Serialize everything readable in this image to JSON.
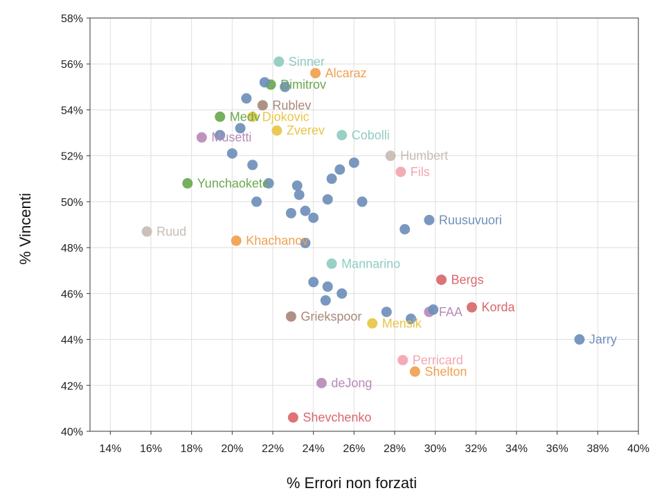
{
  "chart_data": {
    "type": "scatter",
    "xlabel": "% Errori non forzati",
    "ylabel": "% Vincenti",
    "xlim": [
      0.13,
      0.4
    ],
    "ylim": [
      0.4,
      0.58
    ],
    "xticks": [
      {
        "v": 0.14,
        "label": "14%"
      },
      {
        "v": 0.16,
        "label": "16%"
      },
      {
        "v": 0.18,
        "label": "18%"
      },
      {
        "v": 0.2,
        "label": "20%"
      },
      {
        "v": 0.22,
        "label": "22%"
      },
      {
        "v": 0.24,
        "label": "24%"
      },
      {
        "v": 0.26,
        "label": "26%"
      },
      {
        "v": 0.28,
        "label": "28%"
      },
      {
        "v": 0.3,
        "label": "30%"
      },
      {
        "v": 0.32,
        "label": "32%"
      },
      {
        "v": 0.34,
        "label": "34%"
      },
      {
        "v": 0.36,
        "label": "36%"
      },
      {
        "v": 0.38,
        "label": "38%"
      },
      {
        "v": 0.4,
        "label": "40%"
      }
    ],
    "yticks": [
      {
        "v": 0.4,
        "label": "40%"
      },
      {
        "v": 0.42,
        "label": "42%"
      },
      {
        "v": 0.44,
        "label": "44%"
      },
      {
        "v": 0.46,
        "label": "46%"
      },
      {
        "v": 0.48,
        "label": "48%"
      },
      {
        "v": 0.5,
        "label": "50%"
      },
      {
        "v": 0.52,
        "label": "52%"
      },
      {
        "v": 0.54,
        "label": "54%"
      },
      {
        "v": 0.56,
        "label": "56%"
      },
      {
        "v": 0.58,
        "label": "58%"
      }
    ],
    "grid": true,
    "points": [
      {
        "x": 0.223,
        "y": 0.561,
        "label": "Sinner",
        "color": "#8fccc1"
      },
      {
        "x": 0.241,
        "y": 0.556,
        "label": "Alcaraz",
        "color": "#f0a050"
      },
      {
        "x": 0.219,
        "y": 0.551,
        "label": "Dimitrov",
        "color": "#6aa84f"
      },
      {
        "x": 0.215,
        "y": 0.542,
        "label": "Rublev",
        "color": "#a8887a"
      },
      {
        "x": 0.194,
        "y": 0.537,
        "label": "Medv",
        "color": "#6aa84f"
      },
      {
        "x": 0.21,
        "y": 0.537,
        "label": "Djokovic",
        "color": "#e8c547"
      },
      {
        "x": 0.222,
        "y": 0.531,
        "label": "Zverev",
        "color": "#e8c547"
      },
      {
        "x": 0.254,
        "y": 0.529,
        "label": "Cobolli",
        "color": "#8fccc1"
      },
      {
        "x": 0.185,
        "y": 0.528,
        "label": "Musetti",
        "color": "#b88bb8"
      },
      {
        "x": 0.278,
        "y": 0.52,
        "label": "Humbert",
        "color": "#c8bcb4"
      },
      {
        "x": 0.283,
        "y": 0.513,
        "label": "Fils",
        "color": "#f2a5b0"
      },
      {
        "x": 0.178,
        "y": 0.508,
        "label": "Yunchaokete",
        "color": "#6aa84f"
      },
      {
        "x": 0.297,
        "y": 0.492,
        "label": "Ruusuvuori",
        "color": "#6f8fba"
      },
      {
        "x": 0.158,
        "y": 0.487,
        "label": "Ruud",
        "color": "#c8bcb4"
      },
      {
        "x": 0.202,
        "y": 0.483,
        "label": "Khachanov",
        "color": "#f0a050"
      },
      {
        "x": 0.249,
        "y": 0.473,
        "label": "Mannarino",
        "color": "#8fccc1"
      },
      {
        "x": 0.303,
        "y": 0.466,
        "label": "Bergs",
        "color": "#d9676b"
      },
      {
        "x": 0.318,
        "y": 0.454,
        "label": "Korda",
        "color": "#d9676b"
      },
      {
        "x": 0.297,
        "y": 0.452,
        "label": "FAA",
        "color": "#b88bb8"
      },
      {
        "x": 0.229,
        "y": 0.45,
        "label": "Griekspoor",
        "color": "#a8887a"
      },
      {
        "x": 0.269,
        "y": 0.447,
        "label": "Mensik",
        "color": "#e8c547"
      },
      {
        "x": 0.371,
        "y": 0.44,
        "label": "Jarry",
        "color": "#6f8fba"
      },
      {
        "x": 0.284,
        "y": 0.431,
        "label": "Perricard",
        "color": "#f2a5b0"
      },
      {
        "x": 0.29,
        "y": 0.426,
        "label": "Shelton",
        "color": "#f0a050"
      },
      {
        "x": 0.244,
        "y": 0.421,
        "label": "deJong",
        "color": "#b88bb8"
      },
      {
        "x": 0.23,
        "y": 0.406,
        "label": "Shevchenko",
        "color": "#d9676b"
      },
      {
        "x": 0.216,
        "y": 0.552,
        "label": "",
        "color": "#6f8fba"
      },
      {
        "x": 0.226,
        "y": 0.55,
        "label": "",
        "color": "#6f8fba"
      },
      {
        "x": 0.207,
        "y": 0.545,
        "label": "",
        "color": "#6f8fba"
      },
      {
        "x": 0.204,
        "y": 0.532,
        "label": "",
        "color": "#6f8fba"
      },
      {
        "x": 0.194,
        "y": 0.529,
        "label": "",
        "color": "#6f8fba"
      },
      {
        "x": 0.2,
        "y": 0.521,
        "label": "",
        "color": "#6f8fba"
      },
      {
        "x": 0.21,
        "y": 0.516,
        "label": "",
        "color": "#6f8fba"
      },
      {
        "x": 0.26,
        "y": 0.517,
        "label": "",
        "color": "#6f8fba"
      },
      {
        "x": 0.253,
        "y": 0.514,
        "label": "",
        "color": "#6f8fba"
      },
      {
        "x": 0.249,
        "y": 0.51,
        "label": "",
        "color": "#6f8fba"
      },
      {
        "x": 0.218,
        "y": 0.508,
        "label": "",
        "color": "#6f8fba"
      },
      {
        "x": 0.232,
        "y": 0.507,
        "label": "",
        "color": "#6f8fba"
      },
      {
        "x": 0.233,
        "y": 0.503,
        "label": "",
        "color": "#6f8fba"
      },
      {
        "x": 0.212,
        "y": 0.5,
        "label": "",
        "color": "#6f8fba"
      },
      {
        "x": 0.247,
        "y": 0.501,
        "label": "",
        "color": "#6f8fba"
      },
      {
        "x": 0.264,
        "y": 0.5,
        "label": "",
        "color": "#6f8fba"
      },
      {
        "x": 0.229,
        "y": 0.495,
        "label": "",
        "color": "#6f8fba"
      },
      {
        "x": 0.236,
        "y": 0.496,
        "label": "",
        "color": "#6f8fba"
      },
      {
        "x": 0.24,
        "y": 0.493,
        "label": "",
        "color": "#6f8fba"
      },
      {
        "x": 0.285,
        "y": 0.488,
        "label": "",
        "color": "#6f8fba"
      },
      {
        "x": 0.236,
        "y": 0.482,
        "label": "",
        "color": "#6f8fba"
      },
      {
        "x": 0.24,
        "y": 0.465,
        "label": "",
        "color": "#6f8fba"
      },
      {
        "x": 0.247,
        "y": 0.463,
        "label": "",
        "color": "#6f8fba"
      },
      {
        "x": 0.254,
        "y": 0.46,
        "label": "",
        "color": "#6f8fba"
      },
      {
        "x": 0.246,
        "y": 0.457,
        "label": "",
        "color": "#6f8fba"
      },
      {
        "x": 0.276,
        "y": 0.452,
        "label": "",
        "color": "#6f8fba"
      },
      {
        "x": 0.288,
        "y": 0.449,
        "label": "",
        "color": "#6f8fba"
      },
      {
        "x": 0.299,
        "y": 0.453,
        "label": "",
        "color": "#6f8fba"
      }
    ]
  }
}
